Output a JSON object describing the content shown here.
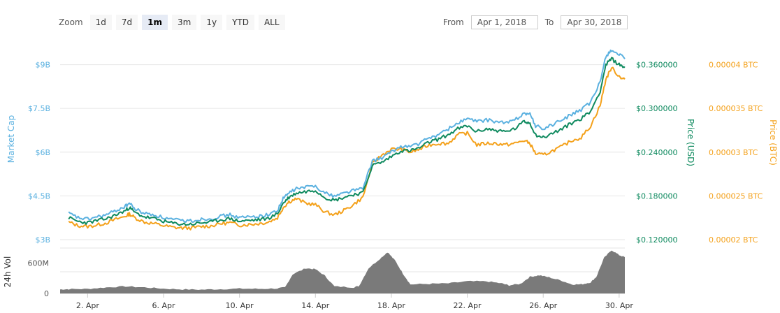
{
  "toolbar": {
    "zoom_label": "Zoom",
    "zoom_buttons": [
      "1d",
      "7d",
      "1m",
      "3m",
      "1y",
      "YTD",
      "ALL"
    ],
    "active_zoom": "1m",
    "from_label": "From",
    "from_value": "Apr 1, 2018",
    "to_label": "To",
    "to_value": "Apr 30, 2018"
  },
  "chart_data": {
    "type": "line",
    "x_range": [
      0.55,
      30.3
    ],
    "x_ticks": [
      {
        "day": 2,
        "label": "2. Apr"
      },
      {
        "day": 6,
        "label": "6. Apr"
      },
      {
        "day": 10,
        "label": "10. Apr"
      },
      {
        "day": 14,
        "label": "14. Apr"
      },
      {
        "day": 18,
        "label": "18. Apr"
      },
      {
        "day": 22,
        "label": "22. Apr"
      },
      {
        "day": 26,
        "label": "26. Apr"
      },
      {
        "day": 30,
        "label": "30. Apr"
      }
    ],
    "axes": {
      "market_cap": {
        "label": "Market Cap",
        "color": "#5bb1e0",
        "range": [
          3,
          9.9
        ],
        "ticks": [
          "$3B",
          "$4.5B",
          "$6B",
          "$7.5B",
          "$9B"
        ]
      },
      "price_usd": {
        "label": "Price (USD)",
        "color": "#0f8a5f",
        "ticks": [
          "$0.120000",
          "$0.180000",
          "$0.240000",
          "$0.300000",
          "$0.360000"
        ]
      },
      "price_btc": {
        "label": "Price (BTC)",
        "color": "#f4a11b",
        "ticks": [
          "0.00002 BTC",
          "0.000025 BTC",
          "0.00003 BTC",
          "0.000035 BTC",
          "0.00004 BTC"
        ]
      },
      "volume": {
        "label": "24h Vol",
        "color": "#7a7a7a",
        "range": [
          0,
          900
        ],
        "ticks": [
          "0",
          "600M"
        ]
      }
    },
    "series": [
      {
        "name": "Market Cap",
        "axis": "market_cap",
        "color": "#5bb1e0",
        "points": [
          [
            1,
            3.9
          ],
          [
            1.5,
            3.75
          ],
          [
            2,
            3.7
          ],
          [
            2.5,
            3.78
          ],
          [
            3,
            3.85
          ],
          [
            3.5,
            4.0
          ],
          [
            4,
            4.15
          ],
          [
            4.2,
            4.25
          ],
          [
            4.5,
            4.05
          ],
          [
            5,
            3.9
          ],
          [
            5.5,
            3.85
          ],
          [
            6,
            3.75
          ],
          [
            6.5,
            3.68
          ],
          [
            7,
            3.65
          ],
          [
            7.5,
            3.65
          ],
          [
            8,
            3.7
          ],
          [
            8.5,
            3.72
          ],
          [
            9,
            3.8
          ],
          [
            9.5,
            3.85
          ],
          [
            10,
            3.75
          ],
          [
            10.5,
            3.78
          ],
          [
            11,
            3.8
          ],
          [
            11.5,
            3.85
          ],
          [
            12,
            4.0
          ],
          [
            12.3,
            4.4
          ],
          [
            12.6,
            4.6
          ],
          [
            13,
            4.75
          ],
          [
            13.5,
            4.8
          ],
          [
            14,
            4.85
          ],
          [
            14.5,
            4.6
          ],
          [
            15,
            4.5
          ],
          [
            15.5,
            4.6
          ],
          [
            16,
            4.7
          ],
          [
            16.5,
            4.75
          ],
          [
            17,
            5.7
          ],
          [
            17.5,
            5.8
          ],
          [
            18,
            6.0
          ],
          [
            18.5,
            6.2
          ],
          [
            19,
            6.2
          ],
          [
            19.5,
            6.3
          ],
          [
            20,
            6.5
          ],
          [
            20.5,
            6.6
          ],
          [
            21,
            6.8
          ],
          [
            21.5,
            7.0
          ],
          [
            22,
            7.15
          ],
          [
            22.5,
            7.05
          ],
          [
            23,
            7.1
          ],
          [
            23.5,
            7.05
          ],
          [
            24,
            7.0
          ],
          [
            24.5,
            7.1
          ],
          [
            25,
            7.35
          ],
          [
            25.3,
            7.3
          ],
          [
            25.6,
            6.9
          ],
          [
            26,
            6.8
          ],
          [
            26.5,
            6.95
          ],
          [
            27,
            7.1
          ],
          [
            27.5,
            7.3
          ],
          [
            28,
            7.45
          ],
          [
            28.5,
            7.7
          ],
          [
            29,
            8.4
          ],
          [
            29.3,
            9.3
          ],
          [
            29.6,
            9.5
          ],
          [
            30,
            9.35
          ],
          [
            30.3,
            9.2
          ]
        ]
      },
      {
        "name": "Price (USD)",
        "axis": "market_cap",
        "color": "#0f8a5f",
        "points": [
          [
            1,
            3.75
          ],
          [
            1.5,
            3.62
          ],
          [
            2,
            3.58
          ],
          [
            2.5,
            3.65
          ],
          [
            3,
            3.72
          ],
          [
            3.5,
            3.85
          ],
          [
            4,
            4.0
          ],
          [
            4.2,
            4.1
          ],
          [
            4.5,
            3.92
          ],
          [
            5,
            3.78
          ],
          [
            5.5,
            3.72
          ],
          [
            6,
            3.63
          ],
          [
            6.5,
            3.56
          ],
          [
            7,
            3.53
          ],
          [
            7.5,
            3.53
          ],
          [
            8,
            3.58
          ],
          [
            8.5,
            3.6
          ],
          [
            9,
            3.68
          ],
          [
            9.5,
            3.72
          ],
          [
            10,
            3.63
          ],
          [
            10.5,
            3.66
          ],
          [
            11,
            3.68
          ],
          [
            11.5,
            3.73
          ],
          [
            12,
            3.88
          ],
          [
            12.3,
            4.25
          ],
          [
            12.6,
            4.45
          ],
          [
            13,
            4.6
          ],
          [
            13.5,
            4.65
          ],
          [
            14,
            4.7
          ],
          [
            14.5,
            4.45
          ],
          [
            15,
            4.35
          ],
          [
            15.5,
            4.45
          ],
          [
            16,
            4.55
          ],
          [
            16.5,
            4.6
          ],
          [
            17,
            5.55
          ],
          [
            17.5,
            5.65
          ],
          [
            18,
            5.85
          ],
          [
            18.5,
            6.05
          ],
          [
            19,
            6.05
          ],
          [
            19.5,
            6.15
          ],
          [
            20,
            6.35
          ],
          [
            20.5,
            6.45
          ],
          [
            21,
            6.6
          ],
          [
            21.5,
            6.8
          ],
          [
            22,
            6.9
          ],
          [
            22.5,
            6.7
          ],
          [
            23,
            6.8
          ],
          [
            23.5,
            6.75
          ],
          [
            24,
            6.7
          ],
          [
            24.5,
            6.8
          ],
          [
            25,
            7.05
          ],
          [
            25.3,
            7.0
          ],
          [
            25.6,
            6.6
          ],
          [
            26,
            6.5
          ],
          [
            26.5,
            6.65
          ],
          [
            27,
            6.8
          ],
          [
            27.5,
            7.0
          ],
          [
            28,
            7.15
          ],
          [
            28.5,
            7.4
          ],
          [
            29,
            8.1
          ],
          [
            29.3,
            9.0
          ],
          [
            29.6,
            9.2
          ],
          [
            30,
            9.0
          ],
          [
            30.3,
            8.9
          ]
        ]
      },
      {
        "name": "Price (BTC)",
        "axis": "market_cap",
        "color": "#f4a11b",
        "points": [
          [
            1,
            3.6
          ],
          [
            1.5,
            3.48
          ],
          [
            2,
            3.45
          ],
          [
            2.5,
            3.5
          ],
          [
            3,
            3.58
          ],
          [
            3.5,
            3.7
          ],
          [
            4,
            3.8
          ],
          [
            4.2,
            3.88
          ],
          [
            4.5,
            3.75
          ],
          [
            5,
            3.6
          ],
          [
            5.5,
            3.55
          ],
          [
            6,
            3.48
          ],
          [
            6.5,
            3.42
          ],
          [
            7,
            3.4
          ],
          [
            7.5,
            3.4
          ],
          [
            8,
            3.45
          ],
          [
            8.5,
            3.47
          ],
          [
            9,
            3.55
          ],
          [
            9.5,
            3.58
          ],
          [
            10,
            3.5
          ],
          [
            10.5,
            3.52
          ],
          [
            11,
            3.55
          ],
          [
            11.5,
            3.6
          ],
          [
            12,
            3.75
          ],
          [
            12.3,
            4.1
          ],
          [
            12.6,
            4.3
          ],
          [
            13,
            4.4
          ],
          [
            13.5,
            4.25
          ],
          [
            14,
            4.2
          ],
          [
            14.5,
            3.95
          ],
          [
            15,
            3.85
          ],
          [
            15.5,
            4.0
          ],
          [
            16,
            4.2
          ],
          [
            16.5,
            4.45
          ],
          [
            17,
            5.6
          ],
          [
            17.5,
            5.9
          ],
          [
            18,
            6.1
          ],
          [
            18.5,
            6.1
          ],
          [
            19,
            6.0
          ],
          [
            19.5,
            6.1
          ],
          [
            20,
            6.25
          ],
          [
            20.5,
            6.3
          ],
          [
            21,
            6.3
          ],
          [
            21.5,
            6.6
          ],
          [
            22,
            6.65
          ],
          [
            22.5,
            6.25
          ],
          [
            23,
            6.3
          ],
          [
            23.5,
            6.3
          ],
          [
            24,
            6.25
          ],
          [
            24.5,
            6.3
          ],
          [
            25,
            6.4
          ],
          [
            25.3,
            6.3
          ],
          [
            25.6,
            5.95
          ],
          [
            26,
            5.9
          ],
          [
            26.5,
            6.05
          ],
          [
            27,
            6.2
          ],
          [
            27.5,
            6.4
          ],
          [
            28,
            6.5
          ],
          [
            28.5,
            6.9
          ],
          [
            29,
            7.6
          ],
          [
            29.3,
            8.5
          ],
          [
            29.6,
            8.9
          ],
          [
            30,
            8.6
          ],
          [
            30.3,
            8.5
          ]
        ]
      },
      {
        "name": "24h Vol",
        "axis": "volume",
        "color": "#7a7a7a",
        "points": [
          [
            0.55,
            80
          ],
          [
            1,
            85
          ],
          [
            2,
            90
          ],
          [
            3,
            120
          ],
          [
            4,
            140
          ],
          [
            5,
            120
          ],
          [
            6,
            95
          ],
          [
            7,
            80
          ],
          [
            8,
            75
          ],
          [
            9,
            85
          ],
          [
            10,
            95
          ],
          [
            11,
            90
          ],
          [
            12,
            100
          ],
          [
            12.4,
            120
          ],
          [
            12.8,
            380
          ],
          [
            13.5,
            500
          ],
          [
            14,
            480
          ],
          [
            14.5,
            350
          ],
          [
            15,
            140
          ],
          [
            16,
            120
          ],
          [
            16.3,
            150
          ],
          [
            16.8,
            500
          ],
          [
            17.5,
            720
          ],
          [
            17.8,
            820
          ],
          [
            18.2,
            650
          ],
          [
            18.6,
            400
          ],
          [
            19,
            180
          ],
          [
            20,
            190
          ],
          [
            21,
            200
          ],
          [
            22,
            240
          ],
          [
            23,
            240
          ],
          [
            23.8,
            200
          ],
          [
            24.2,
            160
          ],
          [
            24.8,
            190
          ],
          [
            25.3,
            330
          ],
          [
            25.8,
            360
          ],
          [
            26.3,
            320
          ],
          [
            27,
            250
          ],
          [
            27.5,
            180
          ],
          [
            28,
            180
          ],
          [
            28.5,
            220
          ],
          [
            28.8,
            330
          ],
          [
            29.2,
            700
          ],
          [
            29.6,
            860
          ],
          [
            30,
            760
          ],
          [
            30.3,
            720
          ]
        ]
      }
    ]
  }
}
